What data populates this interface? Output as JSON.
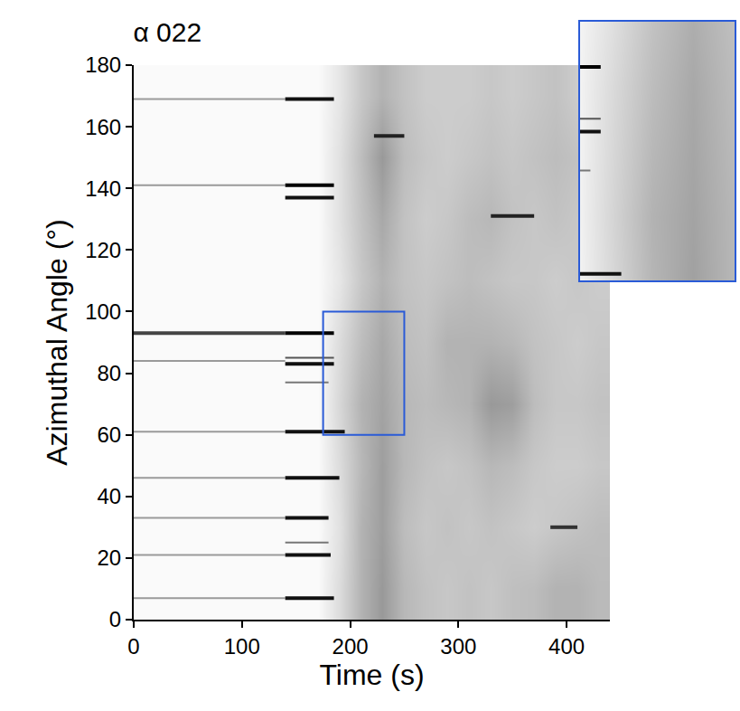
{
  "chart_data": {
    "type": "heatmap",
    "title": "α 022",
    "x_label": "Time (s)",
    "y_label": "Azimuthal Angle (°)",
    "xlim": [
      0,
      440
    ],
    "ylim": [
      0,
      180
    ],
    "xticks": [
      0,
      100,
      200,
      300,
      400
    ],
    "yticks": [
      0,
      20,
      40,
      60,
      80,
      100,
      120,
      140,
      160,
      180
    ],
    "grid": false,
    "zlim": [
      0,
      1
    ],
    "heatmap": {
      "x": [
        10,
        30,
        50,
        70,
        90,
        110,
        130,
        150,
        170,
        190,
        210,
        230,
        250,
        270,
        290,
        310,
        330,
        350,
        370,
        390,
        410,
        430
      ],
      "y": [
        10,
        30,
        50,
        70,
        90,
        110,
        130,
        150,
        170
      ],
      "z": [
        [
          0.02,
          0.02,
          0.02,
          0.02,
          0.02,
          0.02,
          0.02,
          0.02,
          0.02,
          0.14,
          0.3,
          0.4,
          0.28,
          0.24,
          0.22,
          0.24,
          0.22,
          0.25,
          0.26,
          0.3,
          0.3,
          0.27
        ],
        [
          0.02,
          0.02,
          0.02,
          0.02,
          0.02,
          0.02,
          0.02,
          0.02,
          0.02,
          0.12,
          0.3,
          0.38,
          0.26,
          0.22,
          0.24,
          0.22,
          0.24,
          0.22,
          0.2,
          0.22,
          0.24,
          0.26
        ],
        [
          0.02,
          0.02,
          0.02,
          0.02,
          0.02,
          0.02,
          0.02,
          0.02,
          0.02,
          0.14,
          0.28,
          0.38,
          0.28,
          0.24,
          0.22,
          0.24,
          0.28,
          0.26,
          0.22,
          0.2,
          0.2,
          0.22
        ],
        [
          0.02,
          0.02,
          0.02,
          0.02,
          0.02,
          0.02,
          0.02,
          0.02,
          0.02,
          0.16,
          0.3,
          0.36,
          0.28,
          0.26,
          0.28,
          0.3,
          0.4,
          0.38,
          0.26,
          0.22,
          0.22,
          0.24
        ],
        [
          0.02,
          0.02,
          0.02,
          0.02,
          0.02,
          0.02,
          0.02,
          0.02,
          0.02,
          0.14,
          0.26,
          0.34,
          0.26,
          0.24,
          0.3,
          0.3,
          0.3,
          0.28,
          0.24,
          0.22,
          0.2,
          0.22
        ],
        [
          0.02,
          0.02,
          0.02,
          0.02,
          0.02,
          0.02,
          0.02,
          0.02,
          0.02,
          0.1,
          0.22,
          0.3,
          0.24,
          0.22,
          0.24,
          0.26,
          0.24,
          0.22,
          0.22,
          0.2,
          0.22,
          0.2
        ],
        [
          0.02,
          0.02,
          0.02,
          0.02,
          0.02,
          0.02,
          0.02,
          0.02,
          0.02,
          0.12,
          0.24,
          0.34,
          0.24,
          0.2,
          0.22,
          0.26,
          0.28,
          0.24,
          0.22,
          0.24,
          0.22,
          0.2
        ],
        [
          0.02,
          0.02,
          0.02,
          0.02,
          0.02,
          0.02,
          0.02,
          0.02,
          0.02,
          0.12,
          0.26,
          0.4,
          0.26,
          0.22,
          0.2,
          0.22,
          0.24,
          0.22,
          0.24,
          0.26,
          0.24,
          0.22
        ],
        [
          0.02,
          0.02,
          0.02,
          0.02,
          0.02,
          0.02,
          0.02,
          0.02,
          0.02,
          0.1,
          0.22,
          0.3,
          0.24,
          0.2,
          0.2,
          0.2,
          0.22,
          0.2,
          0.22,
          0.24,
          0.2,
          0.2
        ]
      ]
    },
    "series": [
      {
        "type": "line",
        "color": "#9a9a9a",
        "line_style": "thin",
        "x": [
          0,
          140
        ],
        "values": [
          7,
          7
        ]
      },
      {
        "type": "line",
        "color": "#9a9a9a",
        "line_style": "thin",
        "x": [
          0,
          140
        ],
        "values": [
          21,
          21
        ]
      },
      {
        "type": "line",
        "color": "#9a9a9a",
        "line_style": "thin",
        "x": [
          0,
          140
        ],
        "values": [
          33,
          33
        ]
      },
      {
        "type": "line",
        "color": "#9a9a9a",
        "line_style": "thin",
        "x": [
          0,
          140
        ],
        "values": [
          46,
          46
        ]
      },
      {
        "type": "line",
        "color": "#9a9a9a",
        "line_style": "thin",
        "x": [
          0,
          140
        ],
        "values": [
          61,
          61
        ]
      },
      {
        "type": "line",
        "color": "#9a9a9a",
        "line_style": "thin",
        "x": [
          0,
          140
        ],
        "values": [
          84,
          84
        ]
      },
      {
        "type": "line",
        "color": "#444444",
        "line_style": "thick",
        "x": [
          0,
          140
        ],
        "values": [
          93,
          93
        ]
      },
      {
        "type": "line",
        "color": "#9a9a9a",
        "line_style": "thin",
        "x": [
          0,
          140
        ],
        "values": [
          141,
          141
        ]
      },
      {
        "type": "line",
        "color": "#9a9a9a",
        "line_style": "thin",
        "x": [
          0,
          140
        ],
        "values": [
          169,
          169
        ]
      },
      {
        "type": "line",
        "color": "#111111",
        "line_style": "thick",
        "x": [
          140,
          185
        ],
        "values": [
          7,
          7
        ]
      },
      {
        "type": "line",
        "color": "#111111",
        "line_style": "thick",
        "x": [
          140,
          182
        ],
        "values": [
          21,
          21
        ]
      },
      {
        "type": "line",
        "color": "#777777",
        "line_style": "thin",
        "x": [
          140,
          180
        ],
        "values": [
          25,
          25
        ]
      },
      {
        "type": "line",
        "color": "#111111",
        "line_style": "thick",
        "x": [
          140,
          180
        ],
        "values": [
          33,
          33
        ]
      },
      {
        "type": "line",
        "color": "#111111",
        "line_style": "thick",
        "x": [
          140,
          190
        ],
        "values": [
          46,
          46
        ]
      },
      {
        "type": "line",
        "color": "#111111",
        "line_style": "thick",
        "x": [
          140,
          195
        ],
        "values": [
          61,
          61
        ]
      },
      {
        "type": "line",
        "color": "#777777",
        "line_style": "thin",
        "x": [
          140,
          180
        ],
        "values": [
          77,
          77
        ]
      },
      {
        "type": "line",
        "color": "#111111",
        "line_style": "thick",
        "x": [
          140,
          185
        ],
        "values": [
          83,
          83
        ]
      },
      {
        "type": "line",
        "color": "#555555",
        "line_style": "thin",
        "x": [
          140,
          185
        ],
        "values": [
          85,
          85
        ]
      },
      {
        "type": "line",
        "color": "#000000",
        "line_style": "thick",
        "x": [
          140,
          185
        ],
        "values": [
          93,
          93
        ]
      },
      {
        "type": "line",
        "color": "#111111",
        "line_style": "thick",
        "x": [
          140,
          185
        ],
        "values": [
          137,
          137
        ]
      },
      {
        "type": "line",
        "color": "#000000",
        "line_style": "thick",
        "x": [
          140,
          185
        ],
        "values": [
          141,
          141
        ]
      },
      {
        "type": "line",
        "color": "#111111",
        "line_style": "thick",
        "x": [
          140,
          185
        ],
        "values": [
          169,
          169
        ]
      },
      {
        "type": "line",
        "color": "#222222",
        "line_style": "thick",
        "x": [
          222,
          250
        ],
        "values": [
          157,
          157
        ]
      },
      {
        "type": "line",
        "color": "#222222",
        "line_style": "thick",
        "x": [
          330,
          370
        ],
        "values": [
          131,
          131
        ]
      },
      {
        "type": "line",
        "color": "#333333",
        "line_style": "thick",
        "x": [
          385,
          410
        ],
        "values": [
          30,
          30
        ]
      }
    ],
    "inset": {
      "xlim": [
        175,
        250
      ],
      "ylim": [
        60,
        100
      ],
      "color": "#2a5bd7"
    }
  }
}
